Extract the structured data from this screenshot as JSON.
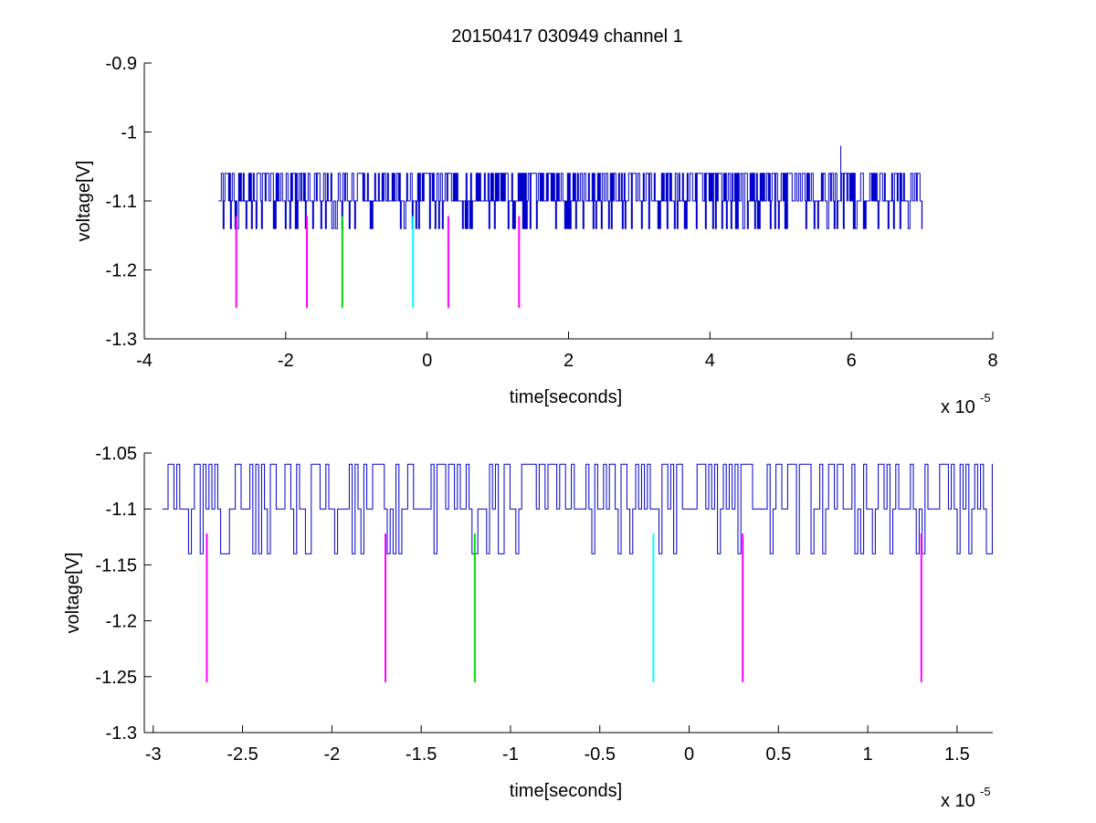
{
  "figure": {
    "title": "20150417 030949 channel 1"
  },
  "colors": {
    "signal": "#0000cc",
    "magenta": "#ff00ff",
    "green": "#00dd00",
    "cyan": "#00ffff",
    "axis": "#000000",
    "background": "#ffffff"
  },
  "chart_data": [
    {
      "type": "line",
      "title": "20150417 030949 channel 1",
      "xlabel": "time[seconds]",
      "ylabel": "voltage[V]",
      "x_multiplier_label": "x 10",
      "x_multiplier_exponent": "-5",
      "xlim": [
        -4,
        8
      ],
      "ylim": [
        -1.3,
        -0.9
      ],
      "xticks": [
        -4,
        -2,
        0,
        2,
        4,
        6,
        8
      ],
      "xtick_labels": [
        "-4",
        "-2",
        "0",
        "2",
        "4",
        "6",
        "8"
      ],
      "yticks": [
        -1.3,
        -1.2,
        -1.1,
        -1.0,
        -0.9
      ],
      "ytick_labels": [
        "-1.3",
        "-1.2",
        "-1.1",
        "-1",
        "-0.9"
      ],
      "grid": false,
      "series": [
        {
          "kind": "noisy-trace",
          "x_start": -2.95,
          "x_end": 7.0,
          "baseline": -1.1,
          "levels": [
            -1.06,
            -1.1,
            -1.14
          ],
          "max_spike": {
            "x": 5.85,
            "y": -1.02
          }
        }
      ],
      "markers": [
        {
          "x": -2.7,
          "y_top": -1.122,
          "y_bottom": -1.255,
          "color": "magenta"
        },
        {
          "x": -1.7,
          "y_top": -1.122,
          "y_bottom": -1.255,
          "color": "magenta"
        },
        {
          "x": -1.2,
          "y_top": -1.122,
          "y_bottom": -1.255,
          "color": "green"
        },
        {
          "x": -0.2,
          "y_top": -1.122,
          "y_bottom": -1.255,
          "color": "cyan"
        },
        {
          "x": 0.3,
          "y_top": -1.122,
          "y_bottom": -1.255,
          "color": "magenta"
        },
        {
          "x": 1.3,
          "y_top": -1.122,
          "y_bottom": -1.255,
          "color": "magenta"
        }
      ]
    },
    {
      "type": "line",
      "title": "",
      "xlabel": "time[seconds]",
      "ylabel": "voltage[V]",
      "x_multiplier_label": "x 10",
      "x_multiplier_exponent": "-5",
      "xlim": [
        -3.05,
        1.7
      ],
      "ylim": [
        -1.3,
        -1.05
      ],
      "xticks": [
        -3,
        -2.5,
        -2,
        -1.5,
        -1,
        -0.5,
        0,
        0.5,
        1,
        1.5
      ],
      "xtick_labels": [
        "-3",
        "-2.5",
        "-2",
        "-1.5",
        "-1",
        "-0.5",
        "0",
        "0.5",
        "1",
        "1.5"
      ],
      "yticks": [
        -1.3,
        -1.25,
        -1.2,
        -1.15,
        -1.1,
        -1.05
      ],
      "ytick_labels": [
        "-1.3",
        "-1.25",
        "-1.2",
        "-1.15",
        "-1.1",
        "-1.05"
      ],
      "grid": false,
      "series": [
        {
          "kind": "noisy-trace",
          "x_start": -2.95,
          "x_end": 1.7,
          "baseline": -1.1,
          "levels": [
            -1.06,
            -1.1,
            -1.14
          ]
        }
      ],
      "markers": [
        {
          "x": -2.7,
          "y_top": -1.122,
          "y_bottom": -1.255,
          "color": "magenta"
        },
        {
          "x": -1.7,
          "y_top": -1.122,
          "y_bottom": -1.255,
          "color": "magenta"
        },
        {
          "x": -1.2,
          "y_top": -1.122,
          "y_bottom": -1.255,
          "color": "green"
        },
        {
          "x": -0.2,
          "y_top": -1.122,
          "y_bottom": -1.255,
          "color": "cyan"
        },
        {
          "x": 0.3,
          "y_top": -1.122,
          "y_bottom": -1.255,
          "color": "magenta"
        },
        {
          "x": 1.3,
          "y_top": -1.122,
          "y_bottom": -1.255,
          "color": "magenta"
        }
      ]
    }
  ]
}
